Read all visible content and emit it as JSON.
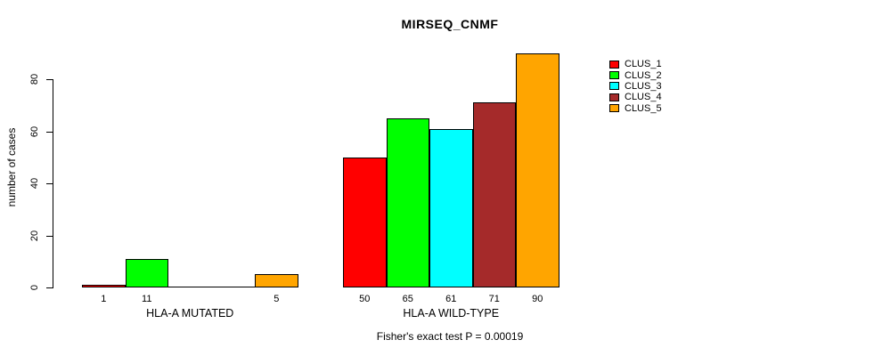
{
  "title": "MIRSEQ_CNMF",
  "ylabel": "number of cases",
  "footer": "Fisher's exact test P = 0.00019",
  "chart_data": {
    "type": "bar",
    "title": "MIRSEQ_CNMF",
    "ylabel": "number of cases",
    "annotation": "Fisher's exact test P = 0.00019",
    "categories": [
      "HLA-A MUTATED",
      "HLA-A WILD-TYPE"
    ],
    "series": [
      {
        "name": "CLUS_1",
        "color": "#FF0000",
        "values": [
          1,
          50
        ]
      },
      {
        "name": "CLUS_2",
        "color": "#00FF00",
        "values": [
          11,
          65
        ]
      },
      {
        "name": "CLUS_3",
        "color": "#00FFFF",
        "values": [
          0,
          61
        ]
      },
      {
        "name": "CLUS_4",
        "color": "#A52A2A",
        "values": [
          0,
          71
        ]
      },
      {
        "name": "CLUS_5",
        "color": "#FFA500",
        "values": [
          5,
          90
        ]
      }
    ],
    "bar_value_labels": [
      [
        "1",
        "11",
        "",
        "",
        "5"
      ],
      [
        "50",
        "65",
        "61",
        "71",
        "90"
      ]
    ],
    "yticks": [
      0,
      20,
      40,
      60,
      80
    ],
    "ylim": [
      0,
      93
    ],
    "grid": false,
    "legend_position": "right",
    "axis_color": "#000000",
    "background_color": "#FFFFFF"
  }
}
